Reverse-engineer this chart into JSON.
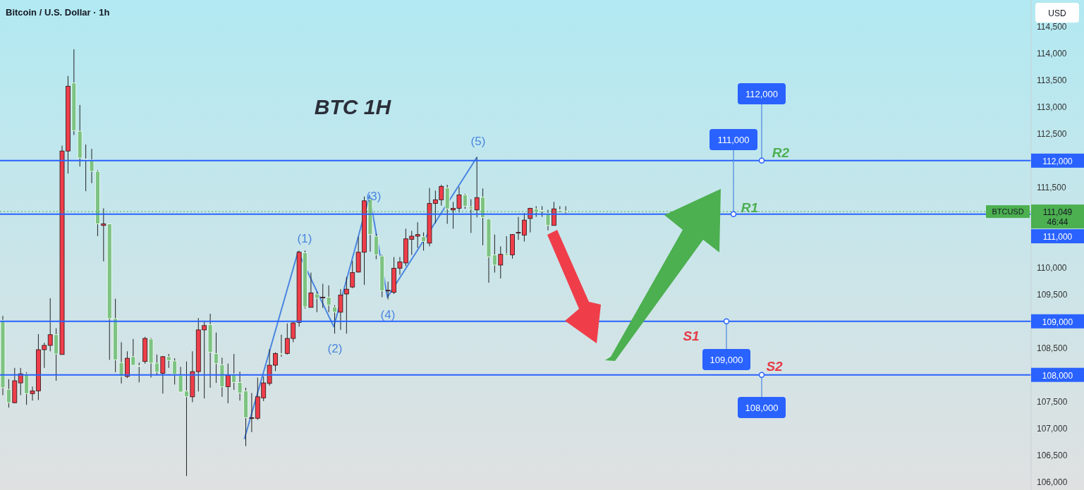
{
  "chart_data": {
    "type": "candlestick",
    "title": "Bitcoin / U.S. Dollar · 1h",
    "ylabel": "USD",
    "categories": [
      null,
      null,
      null,
      null,
      null,
      null,
      null,
      null,
      null,
      null,
      null,
      null,
      null,
      null,
      null,
      null,
      null,
      null,
      null,
      null,
      null,
      null,
      null,
      null,
      null,
      null,
      null,
      null,
      null,
      null,
      null,
      null,
      null,
      null,
      null,
      null,
      null,
      null,
      null,
      null,
      null,
      null,
      null,
      null,
      null,
      null,
      null,
      null,
      null,
      null,
      null,
      null,
      null,
      null,
      null,
      null,
      null,
      null,
      null,
      null,
      null,
      null,
      null,
      null,
      null,
      null,
      null,
      null,
      null,
      null,
      null,
      null,
      null,
      null,
      null,
      null,
      null,
      null,
      null,
      null,
      null,
      null,
      null,
      null,
      null,
      null,
      null,
      null,
      null,
      null,
      null,
      null,
      null,
      null,
      null,
      null,
      null,
      null,
      null,
      null,
      null,
      null,
      null,
      null,
      null,
      null,
      null,
      null,
      null,
      null,
      null,
      null,
      null,
      null,
      null,
      null,
      null,
      null,
      null,
      null,
      null,
      null,
      null,
      null,
      null,
      null,
      null,
      null,
      null,
      null,
      null,
      null,
      null,
      null,
      null,
      null,
      null,
      null,
      null,
      null,
      null,
      null,
      null,
      null,
      null,
      null,
      null,
      null,
      null,
      null,
      null,
      null,
      null,
      null,
      null,
      null,
      null,
      null,
      null,
      null,
      null,
      null,
      null,
      null,
      null,
      null,
      null,
      null,
      null,
      null,
      null,
      null,
      null,
      null
    ],
    "ohlc": [
      [
        109020,
        109100,
        107620,
        107760
      ],
      [
        107730,
        107920,
        107390,
        107480
      ],
      [
        107480,
        108130,
        107470,
        107890
      ],
      [
        107850,
        108130,
        107620,
        108020
      ],
      [
        108020,
        108050,
        107440,
        107650
      ],
      [
        107650,
        107780,
        107520,
        107700
      ],
      [
        107700,
        108760,
        107530,
        108470
      ],
      [
        108470,
        108600,
        108130,
        108550
      ],
      [
        108550,
        109430,
        108440,
        108750
      ],
      [
        108750,
        108870,
        107890,
        108390
      ],
      [
        108380,
        112280,
        108380,
        112180
      ],
      [
        112180,
        113580,
        111760,
        113390
      ],
      [
        113450,
        114080,
        112480,
        112560
      ],
      [
        112550,
        113040,
        111890,
        112050
      ],
      [
        112030,
        112300,
        111430,
        112020
      ],
      [
        112020,
        112220,
        111580,
        111800
      ],
      [
        111800,
        111820,
        110590,
        110820
      ],
      [
        110790,
        111110,
        110120,
        110820
      ],
      [
        110820,
        110820,
        108280,
        109050
      ],
      [
        109050,
        109420,
        108050,
        108280
      ],
      [
        108230,
        108610,
        107840,
        107970
      ],
      [
        107970,
        108440,
        107940,
        108310
      ],
      [
        108340,
        108670,
        108180,
        108180
      ],
      [
        108170,
        108230,
        107860,
        108160
      ],
      [
        108250,
        108710,
        108210,
        108680
      ],
      [
        108670,
        108690,
        107950,
        108220
      ],
      [
        108220,
        108380,
        107990,
        108050
      ],
      [
        108030,
        108350,
        107650,
        108340
      ],
      [
        108340,
        108390,
        108130,
        108270
      ],
      [
        108260,
        108310,
        107820,
        108010
      ],
      [
        107990,
        108150,
        107680,
        107680
      ],
      [
        107700,
        108250,
        106110,
        107590
      ],
      [
        107590,
        108440,
        107490,
        108060
      ],
      [
        108060,
        109060,
        107690,
        108840
      ],
      [
        108840,
        109010,
        107560,
        108920
      ],
      [
        108940,
        109140,
        107760,
        108420
      ],
      [
        108400,
        108790,
        107850,
        108210
      ],
      [
        108190,
        108320,
        107590,
        107780
      ],
      [
        107780,
        108210,
        107470,
        107990
      ],
      [
        108020,
        108390,
        107720,
        107860
      ],
      [
        107860,
        108060,
        107520,
        107660
      ],
      [
        107700,
        107760,
        106670,
        107200
      ],
      [
        107190,
        107660,
        106930,
        107200
      ],
      [
        107190,
        107950,
        107160,
        107590
      ],
      [
        107570,
        107970,
        107510,
        107850
      ],
      [
        107840,
        108480,
        107800,
        108180
      ],
      [
        108180,
        108420,
        108070,
        108400
      ],
      [
        108400,
        108750,
        108340,
        108380
      ],
      [
        108400,
        108960,
        108380,
        108680
      ],
      [
        108680,
        108990,
        108610,
        108970
      ],
      [
        108980,
        110320,
        108900,
        110290
      ],
      [
        110280,
        110320,
        109240,
        109270
      ],
      [
        109260,
        109910,
        109260,
        109530
      ],
      [
        109510,
        109550,
        109170,
        109430
      ],
      [
        109440,
        109700,
        109250,
        109450
      ],
      [
        109450,
        109670,
        109170,
        109300
      ],
      [
        109270,
        109300,
        108770,
        109170
      ],
      [
        109170,
        109600,
        108840,
        109490
      ],
      [
        109510,
        109830,
        108770,
        109600
      ],
      [
        109640,
        110130,
        109620,
        109910
      ],
      [
        109920,
        110580,
        109910,
        110290
      ],
      [
        110290,
        111330,
        109680,
        111250
      ],
      [
        111280,
        111290,
        110300,
        110620
      ],
      [
        110590,
        110630,
        110160,
        110240
      ],
      [
        110220,
        110240,
        109450,
        109570
      ],
      [
        109570,
        109740,
        109410,
        109580
      ],
      [
        109540,
        110200,
        109510,
        109990
      ],
      [
        109990,
        110200,
        109870,
        110110
      ],
      [
        110090,
        110730,
        110030,
        110540
      ],
      [
        110530,
        110690,
        110240,
        110590
      ],
      [
        110590,
        110850,
        110370,
        110620
      ],
      [
        110580,
        110660,
        110320,
        110490
      ],
      [
        110460,
        111490,
        110400,
        111200
      ],
      [
        111200,
        111440,
        110830,
        111270
      ],
      [
        111270,
        111550,
        111160,
        111520
      ],
      [
        111490,
        111550,
        110820,
        111100
      ],
      [
        111080,
        111230,
        110730,
        111110
      ],
      [
        111110,
        111510,
        111030,
        111360
      ],
      [
        111360,
        111380,
        111100,
        111150
      ],
      [
        111140,
        111280,
        110650,
        111100
      ],
      [
        111080,
        112070,
        110940,
        111310
      ],
      [
        111320,
        111480,
        110420,
        110940
      ],
      [
        110910,
        110920,
        109720,
        110200
      ],
      [
        110240,
        110620,
        109910,
        110050
      ],
      [
        110050,
        110400,
        109800,
        110250
      ],
      [
        110260,
        110590,
        110230,
        110230
      ],
      [
        110240,
        110630,
        110170,
        110620
      ],
      [
        110650,
        110950,
        110520,
        110660
      ],
      [
        110610,
        111020,
        110490,
        110890
      ],
      [
        110920,
        111120,
        110660,
        111110
      ],
      [
        111100,
        111150,
        110950,
        111040
      ],
      [
        111070,
        111150,
        110950,
        111060
      ],
      [
        111020,
        111080,
        110700,
        110790
      ],
      [
        110790,
        111230,
        110790,
        111100
      ],
      [
        111080,
        111150,
        111040,
        111070
      ],
      [
        111060,
        111150,
        111020,
        111049
      ],
      null,
      null,
      null,
      null,
      null,
      null,
      null,
      null,
      null,
      null,
      null,
      null,
      null,
      null,
      null,
      null,
      null,
      null,
      null,
      null,
      null,
      null,
      null,
      null,
      null,
      null,
      null,
      null,
      null,
      null,
      null,
      null,
      null,
      null,
      null,
      null,
      null,
      null,
      null,
      null,
      null,
      null,
      null,
      null,
      null,
      null,
      null,
      null,
      null,
      null,
      null,
      null,
      null,
      null,
      null,
      null,
      null,
      null,
      null,
      null,
      null,
      null,
      null,
      null,
      null,
      null,
      null,
      null,
      null,
      null,
      null,
      null,
      null,
      null,
      null,
      null,
      null,
      null
    ],
    "colors": [
      "#7dc383",
      "#7dc383",
      "#ef3e4a",
      "#ef3e4a",
      "#7dc383",
      "#ef3e4a",
      "#ef3e4a",
      "#ef3e4a",
      "#ef3e4a",
      "#7dc383",
      "#ef3e4a",
      "#ef3e4a",
      "#7dc383",
      "#7dc383",
      "#7dc383",
      "#7dc383",
      "#7dc383",
      "#ef3e4a",
      "#7dc383",
      "#7dc383",
      "#7dc383",
      "#ef3e4a",
      "#7dc383",
      "#7dc383",
      "#ef3e4a",
      "#7dc383",
      "#7dc383",
      "#ef3e4a",
      "#7dc383",
      "#7dc383",
      "#7dc383",
      "#7dc383",
      "#ef3e4a",
      "#ef3e4a",
      "#ef3e4a",
      "#7dc383",
      "#7dc383",
      "#7dc383",
      "#ef3e4a",
      "#7dc383",
      "#7dc383",
      "#7dc383",
      "#ef3e4a",
      "#ef3e4a",
      "#ef3e4a",
      "#ef3e4a",
      "#ef3e4a",
      "#7dc383",
      "#ef3e4a",
      "#ef3e4a",
      "#ef3e4a",
      "#7dc383",
      "#ef3e4a",
      "#7dc383",
      "#ef3e4a",
      "#7dc383",
      "#7dc383",
      "#ef3e4a",
      "#ef3e4a",
      "#ef3e4a",
      "#ef3e4a",
      "#ef3e4a",
      "#7dc383",
      "#7dc383",
      "#7dc383",
      "#ef3e4a",
      "#ef3e4a",
      "#ef3e4a",
      "#ef3e4a",
      "#ef3e4a",
      "#ef3e4a",
      "#7dc383",
      "#ef3e4a",
      "#ef3e4a",
      "#ef3e4a",
      "#7dc383",
      "#ef3e4a",
      "#ef3e4a",
      "#7dc383",
      "#7dc383",
      "#ef3e4a",
      "#7dc383",
      "#7dc383",
      "#7dc383",
      "#ef3e4a",
      "#7dc383",
      "#ef3e4a",
      "#ef3e4a",
      "#ef3e4a",
      "#ef3e4a",
      "#7dc383",
      "#7dc383",
      "#7dc383",
      "#ef3e4a",
      "#7dc383",
      "#7dc383",
      null,
      null,
      null,
      null,
      null,
      null,
      null,
      null,
      null,
      null,
      null,
      null,
      null,
      null,
      null,
      null,
      null,
      null,
      null,
      null,
      null,
      null,
      null,
      null,
      null,
      null,
      null,
      null,
      null,
      null,
      null,
      null,
      null,
      null,
      null,
      null,
      null,
      null,
      null,
      null,
      null,
      null,
      null,
      null,
      null,
      null,
      null,
      null,
      null,
      null,
      null,
      null,
      null,
      null,
      null,
      null,
      null,
      null,
      null,
      null,
      null,
      null,
      null,
      null,
      null,
      null,
      null,
      null,
      null,
      null,
      null,
      null,
      null,
      null,
      null,
      null,
      null,
      null
    ],
    "series": [
      {
        "type": "line",
        "color": "#4a86e0",
        "values": [
          null,
          null,
          null,
          null,
          null,
          null,
          null,
          null,
          null,
          null,
          null,
          null,
          null,
          null,
          null,
          null,
          null,
          null,
          null,
          null,
          null,
          null,
          null,
          null,
          null,
          null,
          null,
          null,
          null,
          null,
          null,
          null,
          null,
          null,
          null,
          null,
          null,
          null,
          null,
          null,
          null,
          106800,
          null,
          null,
          null,
          null,
          null,
          null,
          null,
          null,
          110300,
          null,
          null,
          null,
          null,
          null,
          108900,
          null,
          null,
          null,
          null,
          null,
          111350,
          null,
          null,
          109450,
          null,
          null,
          null,
          null,
          null,
          null,
          null,
          null,
          null,
          null,
          null,
          null,
          null,
          null,
          112060,
          null,
          null,
          null,
          null,
          null,
          null,
          null,
          null,
          null,
          null,
          null,
          null,
          null,
          null,
          null,
          null,
          null,
          null,
          null,
          null,
          null,
          null,
          null,
          null,
          null,
          null,
          null,
          null,
          null,
          null,
          null,
          null,
          null,
          null,
          null,
          null,
          null,
          null,
          null,
          null,
          null,
          null,
          null,
          null,
          null,
          null,
          null,
          null,
          null,
          null,
          null,
          null,
          null,
          null,
          null,
          null,
          null,
          null,
          null,
          null,
          null,
          null,
          null,
          null,
          null,
          null,
          null,
          null,
          null,
          null,
          null,
          null,
          null,
          null,
          null,
          null,
          null,
          null,
          null,
          null,
          null,
          null,
          null,
          null,
          null,
          null,
          null,
          null,
          null,
          null,
          null,
          null,
          null
        ]
      }
    ],
    "ylim": [
      105850,
      115000
    ],
    "yticks": [
      {
        "value": 106000,
        "label": "106,000"
      },
      {
        "value": 106500,
        "label": "106,500"
      },
      {
        "value": 107000,
        "label": "107,000"
      },
      {
        "value": 107500,
        "label": "107,500"
      },
      {
        "value": 108000,
        "label": null
      },
      {
        "value": 108500,
        "label": "108,500"
      },
      {
        "value": 109000,
        "label": null
      },
      {
        "value": 109500,
        "label": "109,500"
      },
      {
        "value": 110000,
        "label": "110,000"
      },
      {
        "value": 111000,
        "label": null
      },
      {
        "value": 111500,
        "label": "111,500"
      },
      {
        "value": 112000,
        "label": null
      },
      {
        "value": 112500,
        "label": "112,500"
      },
      {
        "value": 113000,
        "label": "113,000"
      },
      {
        "value": 113500,
        "label": "113,500"
      },
      {
        "value": 114000,
        "label": "114,000"
      },
      {
        "value": 114500,
        "label": "114,500"
      }
    ],
    "tick_labels": "y",
    "ref_lines": [
      {
        "axis": "y",
        "value": 112000,
        "label": "112,000",
        "color": "#2962ff"
      },
      {
        "axis": "y",
        "value": 111000,
        "label": "111,000",
        "color": "#2962ff"
      },
      {
        "axis": "y",
        "value": 109000,
        "label": "109,000",
        "color": "#2962ff"
      },
      {
        "axis": "y",
        "value": 108000,
        "label": "108,000",
        "color": "#2962ff"
      },
      {
        "axis": "y",
        "value": 111049,
        "label": "BTCUSD",
        "color": "#4caf50",
        "line_style": "dotted"
      }
    ],
    "annotations": [
      "BTC 1H",
      "(1)",
      "(2)",
      "(3)",
      "(4)",
      "(5)",
      "112,000",
      "111,000",
      "109,000",
      "108,000",
      "R2",
      "R1",
      "S1",
      "S2",
      "111,049",
      "46:44"
    ]
  }
}
